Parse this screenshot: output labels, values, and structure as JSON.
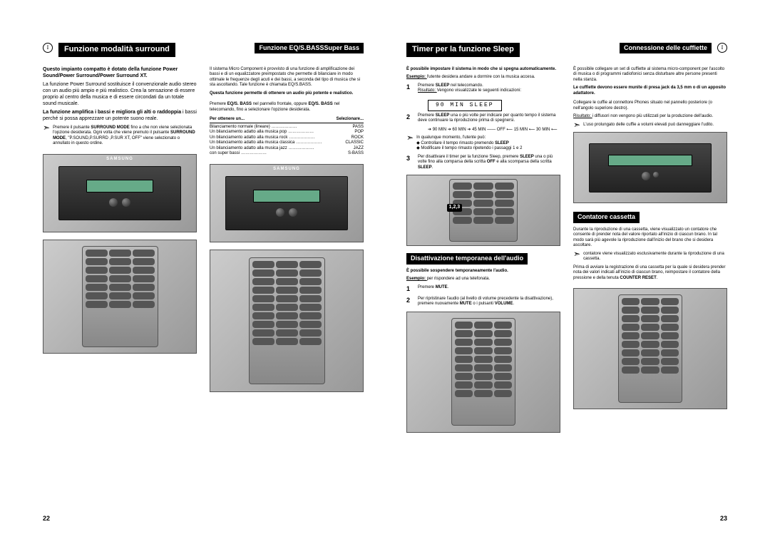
{
  "noteSymbol": "I",
  "leftPage": {
    "sectionA": {
      "title": "Funzione modalità surround",
      "p1_bold": "Questo impianto compatto è dotato della funzione Power Sound/Power Surround/Power Surround XT.",
      "p2": "La funzione Power Surround sostituisce il convenzionale audio stereo con un audio più ampio e più realistico. Crea la sensazione di essere proprio al centro della musica e di essere circondati da un totale sound musicale.",
      "p3_bold": "La funzione amplifica i bassi e migliora gli alti o raddoppia",
      "p3_rest": " i bassi perché si possa apprezzare un potente suono reale.",
      "pointer": {
        "line1a": "Premere il pulsante ",
        "line1b": "SURROUND MODE",
        "line1c": " fino a che non viene selezionata l'opzione desiderata. Ogni volta che viene premuto il pulsante ",
        "line1d": "SURROUND MODE",
        "line1e": ", \"P.SOUND,P.SURRD ,P.SUR XT, OFF\" viene selezionato o annullato in questo ordine."
      }
    },
    "sectionB": {
      "title": "Funzione EQ/S.BASSSuper Bass",
      "p1": "Il sistema Micro Component è provvisto di una funzione di amplificazione dei bassi e di un equalizzatore preimpostato che permette di bilanciare in modo ottimale le frequenze degli acuti e dei bassi, a seconda del tipo di musica che si sta ascoltando. Tale funzione è chiamata EQ/S.BASS.",
      "p2_bold": "Questa funzione permette di ottenere un audio più potente e realistico.",
      "instr1a": "Premere ",
      "instr1b": "EQ/S. BASS",
      "instr1c": " nel pannello frontale, oppure ",
      "instr1d": "EQ/S. BASS",
      "instr1e": " nel telecomando, fino a selezionare l'opzione desiderata.",
      "tableHead1": "Per ottenere un...",
      "tableHead2": "Selezionare...",
      "rows": [
        {
          "l": "Bilanciamento normale (lineare)",
          "r": "PASS"
        },
        {
          "l": "Un bilanciamento adatto alla musica pop",
          "r": "POP"
        },
        {
          "l": "Un bilanciamento adatto alla musica rock",
          "r": "ROCK"
        },
        {
          "l": "Un bilanciamento adatto alla musica classica",
          "r": "CLASSIC"
        },
        {
          "l": "Un bilanciamento adatto alla musica jazz",
          "r": "JAZZ"
        },
        {
          "l": "con super bassi",
          "r": "S-BASS"
        }
      ]
    },
    "pageNumber": "22",
    "brandLabel": "SAMSUNG"
  },
  "rightPage": {
    "sectionC": {
      "title": "Timer per la funzione Sleep",
      "intro_bold": "È possibile impostare il sistema in modo che si spegna automaticamente.",
      "intro_ex_a": "Esempio: ",
      "intro_ex_b": "l'utente desidera andare a dormire con la musica accesa.",
      "step1_a": "Premere ",
      "step1_b": "SLEEP",
      "step1_c": " nel telecomando.",
      "step1_res_a": "Risultato: ",
      "step1_res_b": "Vengono visualizzate le seguenti indicazioni:",
      "display": "90 MIN SLEEP",
      "step2_a": "Premere ",
      "step2_b": "SLEEP",
      "step2_c": " una o più volte per indicare per quanto tempo il sistema deve continuare la riproduzione prima di spegnersi.",
      "seq": "➔ 90 MIN ➔ 60 MIN ➔ 45 MIN ——\nOFF ⟵ 15 MIN ⟵ 30 MIN ⟵",
      "step2_note_head": "In qualunque momento, l'utente può:",
      "step2_note_a": "Controllare il tempo rimasto premendo ",
      "step2_note_a_bold": "SLEEP",
      "step2_note_b": "Modificare il tempo rimasto ripetendo i passaggi 1 e 2",
      "step3_a": "Per disattivare il timer per la funzione Sleep, premere ",
      "step3_b": "SLEEP",
      "step3_c": " una o più volte fino alla comparsa della scritta ",
      "step3_d": "OFF",
      "step3_e": " e alla scomparsa della scritta ",
      "step3_f": "SLEEP",
      "stepBadge": "1,2,3"
    },
    "sectionD": {
      "title": "Disattivazione temporanea dell'audio",
      "intro_bold": "È possibile sospendere temporaneamente l'audio.",
      "intro_ex_a": "Esempio: ",
      "intro_ex_b": "per rispondere ad una telefonata.",
      "step1_a": "Premere ",
      "step1_b": "MUTE",
      "step2_a": "Per ripristinare l'audio (al livello di volume precedente la disattivazione), premere nuovamente ",
      "step2_b": "MUTE",
      "step2_c": " o i pulsanti ",
      "step2_d": "VOLUME"
    },
    "sectionE": {
      "title": "Connessione delle cuffiette",
      "p1": "È possibile collegare un set di cuffiette al sistema micro-component per l'ascolto di musica o di programmi radiofonici senza disturbare altre persone presenti nella stanza.",
      "p2_bold": "Le cuffiette devono essere munite di presa jack da 3,5 mm o di un apposito adattatore.",
      "instr": "Collegare le cuffie al connettore Phones situato nel pannello posteriore (o nell'angolo superiore destro).",
      "res_a": "Risultato: ",
      "res_b": "i diffusori non vengono più utilizzati per la produzione dell'audio.",
      "warn": "L'uso prolungato delle cuffie a volumi elevati può danneggiare l'udito."
    },
    "sectionF": {
      "title": "Contatore cassetta",
      "p1": "Durante la riproduzione di una cassetta, viene visualizzato un contatore che consente di prender nota del valore riportato all'inizio di ciascun brano. In tal modo sarà più agevole la riproduzione dall'inizio del brano che si desidera ascoltare.",
      "note": "contatore viene visualizzato esclusivamente durante la riproduzione di una cassetta.",
      "p2_a": "Prima di avviare la registrazione di una cassetta per la quale si desidera prender nota dei valori indicati all'inizio di ciascun brano, reimpostare il contatore della pressione e della tenuta ",
      "p2_b": "COUNTER RESET"
    },
    "pageNumber": "23"
  },
  "colors": {
    "headerBg": "#000000",
    "headerFg": "#ffffff",
    "text": "#000000",
    "photoBg1": "#cccccc",
    "photoBg2": "#999999",
    "unitDark": "#222222"
  }
}
